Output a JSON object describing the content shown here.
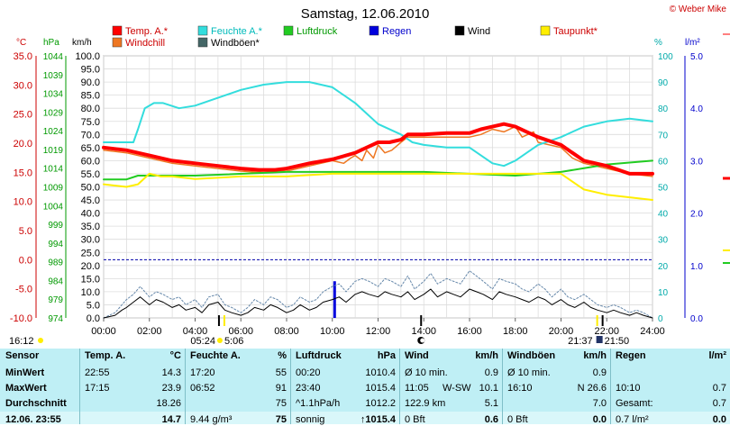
{
  "window_title": "Samstag, 12.06.2010",
  "copyright": "© Weber Mike",
  "legend": [
    {
      "label": "Temp. A.*",
      "color": "#ff0000"
    },
    {
      "label": "Feuchte A.*",
      "color": "#33dddd"
    },
    {
      "label": "Luftdruck",
      "color": "#22cc22"
    },
    {
      "label": "Regen",
      "color": "#0000dd"
    },
    {
      "label": "Wind",
      "color": "#000000"
    },
    {
      "label": "Taupunkt*",
      "color": "#ffee00"
    },
    {
      "label": "Windchill",
      "color": "#ee7722"
    },
    {
      "label": "Windböen*",
      "color": "#446666"
    }
  ],
  "axis_units": {
    "temp": "°C",
    "pressure": "hPa",
    "wind": "km/h",
    "humidity": "%",
    "rain": "l/m²"
  },
  "chart_data": {
    "type": "line",
    "x_ticks": [
      "00:00",
      "02:00",
      "04:00",
      "06:00",
      "08:00",
      "10:00",
      "12:00",
      "14:00",
      "16:00",
      "18:00",
      "20:00",
      "22:00",
      "24:00"
    ],
    "xlim": [
      0,
      24
    ],
    "left_axes": {
      "temp": {
        "ticks": [
          "35.0",
          "30.0",
          "25.0",
          "20.0",
          "15.0",
          "10.0",
          "5.0",
          "0.0",
          "-5.0",
          "-10.0"
        ],
        "ylim": [
          -10,
          35
        ]
      },
      "pressure": {
        "ticks": [
          "1044",
          "1039",
          "1034",
          "1029",
          "1024",
          "1019",
          "1014",
          "1009",
          "1004",
          "999",
          "994",
          "989",
          "984",
          "979",
          "974"
        ],
        "ylim": [
          974,
          1044
        ]
      },
      "wind": {
        "ticks": [
          "100.0",
          "95.0",
          "90.0",
          "85.0",
          "80.0",
          "75.0",
          "70.0",
          "65.0",
          "60.0",
          "55.0",
          "50.0",
          "45.0",
          "40.0",
          "35.0",
          "30.0",
          "25.0",
          "20.0",
          "15.0",
          "10.0",
          "5.0",
          "0.0"
        ],
        "ylim": [
          0,
          100
        ]
      }
    },
    "right_axes": {
      "humidity": {
        "ticks": [
          "100",
          "90",
          "80",
          "70",
          "60",
          "50",
          "40",
          "30",
          "20",
          "10",
          "0"
        ],
        "ylim": [
          0,
          100
        ]
      },
      "rain": {
        "ticks": [
          "5.0",
          "4.0",
          "3.0",
          "2.0",
          "1.0",
          "0.0"
        ],
        "ylim": [
          0,
          5
        ]
      }
    },
    "series": [
      {
        "name": "Temp. A.*",
        "axis": "wind",
        "color": "#ff0000",
        "width": 4,
        "x": [
          0,
          1,
          2,
          3,
          4,
          5,
          6,
          6.8,
          7.5,
          8,
          9,
          10,
          11,
          11.5,
          12,
          12.5,
          13,
          13.3,
          14,
          15,
          16,
          16.5,
          17,
          17.5,
          18,
          18.5,
          19,
          20,
          20.5,
          21,
          22,
          23,
          24
        ],
        "y": [
          65,
          64,
          62,
          60,
          59,
          58,
          57,
          56.5,
          56.5,
          57,
          59,
          60.5,
          63,
          65,
          67,
          67,
          68,
          70,
          70,
          70.5,
          70.5,
          72,
          73,
          74,
          73,
          71,
          69,
          66,
          63,
          60,
          58,
          55,
          55
        ]
      },
      {
        "name": "Windchill",
        "axis": "wind",
        "color": "#ee7722",
        "width": 1.5,
        "x": [
          0,
          1,
          2,
          3,
          4,
          5,
          6,
          7,
          8,
          9,
          10,
          10.5,
          10.8,
          11,
          11.3,
          11.5,
          11.8,
          12,
          12.3,
          12.6,
          13,
          13.3,
          14,
          15,
          16,
          16.5,
          17,
          17.5,
          18,
          18.3,
          18.8,
          19,
          20,
          20.5,
          21,
          22,
          23,
          24
        ],
        "y": [
          64,
          63,
          61,
          59,
          58,
          57,
          56,
          55.5,
          56,
          58,
          60,
          59,
          61,
          62,
          60,
          64,
          61,
          66,
          63,
          64,
          67,
          69,
          69,
          69,
          69,
          70,
          72,
          71,
          73,
          69,
          71,
          67,
          65,
          61,
          59,
          57,
          55,
          54
        ]
      },
      {
        "name": "Feuchte A.*",
        "axis": "humidity",
        "color": "#33dddd",
        "width": 2,
        "x": [
          0,
          1.3,
          1.5,
          1.8,
          2.2,
          2.6,
          3.3,
          4,
          5,
          6,
          7,
          8,
          9,
          10,
          11,
          12,
          13,
          13.5,
          14,
          15,
          16,
          16.5,
          17,
          17.5,
          18,
          18.5,
          19,
          20,
          20.5,
          21,
          22,
          23,
          24
        ],
        "y": [
          67,
          67,
          72,
          80,
          82,
          82,
          80,
          81,
          84,
          87,
          89,
          90,
          90,
          88,
          82,
          74,
          70,
          67,
          66,
          65,
          65,
          62,
          59,
          58,
          60,
          63,
          66,
          69,
          71,
          73,
          75,
          76,
          75
        ]
      },
      {
        "name": "Luftdruck",
        "axis": "pressure",
        "color": "#22cc22",
        "width": 2,
        "x": [
          0,
          1,
          1.5,
          2,
          4,
          8,
          14,
          18,
          20,
          22,
          24
        ],
        "y": [
          1011,
          1011,
          1012,
          1012,
          1012,
          1013,
          1013,
          1012,
          1013,
          1015,
          1016
        ]
      },
      {
        "name": "Taupunkt*",
        "axis": "wind",
        "color": "#ffee00",
        "width": 2,
        "x": [
          0,
          1,
          1.5,
          2,
          2.5,
          3,
          4,
          6,
          8,
          10,
          12,
          14,
          16,
          18,
          19,
          20,
          20.5,
          21,
          22,
          23,
          24
        ],
        "y": [
          51,
          50,
          51,
          55,
          54,
          54,
          53,
          54,
          54,
          55,
          55,
          55,
          55,
          55,
          55,
          55,
          52,
          49,
          47,
          46,
          45
        ]
      },
      {
        "name": "Wind",
        "axis": "wind",
        "color": "#000000",
        "width": 1,
        "x": [
          0,
          0.5,
          0.8,
          1,
          1.3,
          1.6,
          2,
          2.3,
          2.6,
          3,
          3.3,
          3.6,
          4,
          4.3,
          4.6,
          5,
          5.3,
          5.6,
          6,
          6.3,
          6.6,
          7,
          7.3,
          7.6,
          8,
          8.3,
          8.6,
          9,
          9.3,
          9.6,
          10,
          10.3,
          10.6,
          11,
          11.3,
          11.6,
          12,
          12.3,
          12.6,
          13,
          13.3,
          13.6,
          14,
          14.3,
          14.6,
          15,
          15.3,
          15.6,
          16,
          16.3,
          16.6,
          17,
          17.3,
          17.6,
          18,
          18.3,
          18.6,
          19,
          19.3,
          19.6,
          20,
          20.3,
          20.6,
          21,
          21.3,
          21.6,
          22,
          22.3,
          22.6,
          23,
          23.3,
          23.6,
          24
        ],
        "y": [
          0,
          1,
          3,
          4,
          6,
          8,
          5,
          7,
          6,
          4,
          5,
          3,
          4,
          2,
          5,
          6,
          3,
          2,
          1,
          2,
          4,
          3,
          5,
          4,
          2,
          3,
          5,
          3,
          4,
          6,
          7,
          8,
          6,
          9,
          10,
          9,
          8,
          10,
          9,
          8,
          10,
          7,
          9,
          11,
          8,
          10,
          9,
          8,
          11,
          10,
          9,
          7,
          10,
          9,
          8,
          7,
          6,
          8,
          7,
          5,
          7,
          5,
          4,
          6,
          4,
          3,
          2,
          3,
          2,
          1,
          2,
          1,
          0
        ]
      },
      {
        "name": "Windböen*",
        "axis": "wind",
        "color": "#6688aa",
        "width": 1,
        "dash": "2,2",
        "x": [
          0,
          0.5,
          0.8,
          1,
          1.3,
          1.6,
          2,
          2.3,
          2.6,
          3,
          3.3,
          3.6,
          4,
          4.3,
          4.6,
          5,
          5.3,
          5.6,
          6,
          6.3,
          6.6,
          7,
          7.3,
          7.6,
          8,
          8.3,
          8.6,
          9,
          9.3,
          9.6,
          10,
          10.3,
          10.6,
          11,
          11.3,
          11.6,
          12,
          12.3,
          12.6,
          13,
          13.3,
          13.6,
          14,
          14.3,
          14.6,
          15,
          15.3,
          15.6,
          16,
          16.3,
          16.6,
          17,
          17.3,
          17.6,
          18,
          18.3,
          18.6,
          19,
          19.3,
          19.6,
          20,
          20.3,
          20.6,
          21,
          21.3,
          21.6,
          22,
          22.3,
          22.6,
          23,
          23.3,
          23.6,
          24
        ],
        "y": [
          0,
          2,
          5,
          7,
          9,
          12,
          8,
          10,
          9,
          7,
          8,
          5,
          7,
          4,
          8,
          9,
          5,
          4,
          2,
          4,
          7,
          5,
          8,
          7,
          4,
          5,
          8,
          6,
          7,
          10,
          12,
          13,
          10,
          14,
          15,
          14,
          12,
          15,
          14,
          12,
          16,
          11,
          14,
          17,
          13,
          15,
          14,
          13,
          18,
          16,
          14,
          11,
          15,
          14,
          13,
          11,
          10,
          13,
          11,
          8,
          11,
          8,
          7,
          9,
          7,
          5,
          4,
          5,
          4,
          2,
          3,
          2,
          0
        ]
      },
      {
        "name": "Regen",
        "axis": "rain",
        "type": "bar",
        "color": "#0000dd",
        "x": [
          10.1
        ],
        "y": [
          0.7
        ]
      }
    ],
    "reference_lines": [
      {
        "axis": "temp",
        "value": 0,
        "color": "#0000aa",
        "style": "dashed"
      }
    ],
    "sun_markers": {
      "left_start": "16:12",
      "rise": [
        "05:24",
        "5:06"
      ],
      "set": [
        "21:37",
        "21:50"
      ],
      "rise_pos": 5.2,
      "set_pos": 21.7,
      "moon_pos": 14.0
    }
  },
  "table": {
    "headers": [
      "Sensor",
      "Temp. A.",
      "°C",
      "Feuchte A.",
      "%",
      "Luftdruck",
      "hPa",
      "Wind",
      "km/h",
      "Windböen",
      "km/h",
      "Regen",
      "l/m²"
    ],
    "rows": [
      [
        "MinWert",
        "22:55",
        "14.3",
        "17:20",
        "55",
        "00:20",
        "1010.4",
        "Ø 10 min.",
        "",
        "0.9",
        "Ø 10 min.",
        "0.9",
        "",
        ""
      ],
      [
        "MaxWert",
        "17:15",
        "23.9",
        "06:52",
        "91",
        "23:40",
        "1015.4",
        "11:05",
        "W-SW",
        "10.1",
        "16:10",
        "N 26.6",
        "10:10",
        "0.7"
      ],
      [
        "Durchschnitt",
        "",
        "18.26",
        "",
        "75",
        "^1.1hPa/h",
        "1012.2",
        "122.9 km",
        "",
        "5.1",
        "",
        "7.0",
        "Gesamt:",
        "0.7"
      ],
      [
        "12.06. 23:55",
        "",
        "14.7",
        "9.44 g/m³",
        "75",
        "sonnig",
        "↑1015.4",
        "0 Bft",
        "",
        "0.6",
        "0 Bft",
        "0.0",
        "0.7 l/m²",
        "0.0"
      ]
    ]
  }
}
